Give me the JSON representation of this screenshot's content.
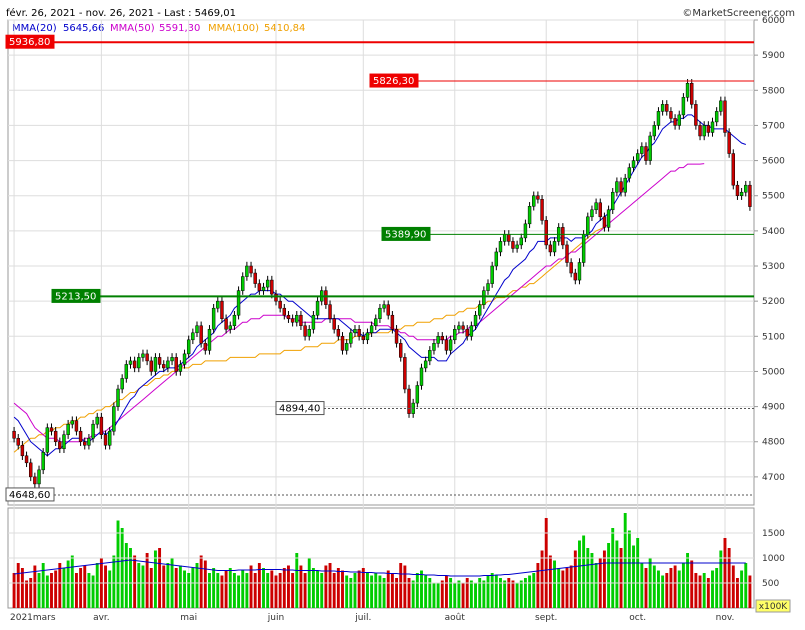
{
  "header": {
    "range": "févr. 26, 2021 - nov. 26, 2021 - Last : 5469,01",
    "copyright": "©MarketScreener.com"
  },
  "legend": [
    {
      "label": "MMA(20)",
      "value": "5645,66",
      "color": "#0000cc"
    },
    {
      "label": "MMA(50)",
      "value": "5591,30",
      "color": "#cc00cc"
    },
    {
      "label": "MMA(100)",
      "value": "5410,84",
      "color": "#f0a000"
    }
  ],
  "colors": {
    "up": "#00cc00",
    "down": "#cc0000",
    "grid": "#dddddd"
  },
  "chart_data": {
    "type": "candlestick",
    "price_axis": {
      "min": 4620,
      "max": 6000,
      "ticks": [
        4700,
        4800,
        4900,
        5000,
        5100,
        5200,
        5300,
        5400,
        5500,
        5600,
        5700,
        5800,
        5900,
        6000
      ]
    },
    "price_tick_labels": [
      "4700",
      "4800",
      "4900",
      "5000",
      "5100",
      "5200",
      "5300",
      "5400",
      "5500",
      "5600",
      "5700",
      "5800",
      "5900",
      "6000"
    ],
    "x_labels": [
      "2021mars",
      "avr.",
      "mai",
      "juin",
      "juil.",
      "août",
      "sept.",
      "oct.",
      "nov."
    ],
    "levels": [
      {
        "label": "5936,80",
        "value": 5936.8,
        "color": "#ee0000",
        "bg": "#ee0000",
        "style": "thick"
      },
      {
        "label": "5826,30",
        "value": 5826.3,
        "color": "#ee0000",
        "bg": "#ee0000",
        "style": "thin"
      },
      {
        "label": "5389,90",
        "value": 5389.9,
        "color": "#008000",
        "bg": "#008000",
        "style": "thin"
      },
      {
        "label": "5213,50",
        "value": 5213.5,
        "color": "#008000",
        "bg": "#008000",
        "style": "thick"
      },
      {
        "label": "4894,40",
        "value": 4894.4,
        "color": "#555555",
        "bg": "#ffffff",
        "style": "dashed"
      },
      {
        "label": "4648,60",
        "value": 4648.6,
        "color": "#555555",
        "bg": "#ffffff",
        "style": "dashed"
      }
    ],
    "close": [
      4810,
      4790,
      4760,
      4740,
      4700,
      4680,
      4720,
      4770,
      4840,
      4830,
      4800,
      4780,
      4820,
      4850,
      4860,
      4830,
      4800,
      4790,
      4810,
      4850,
      4870,
      4820,
      4790,
      4830,
      4900,
      4950,
      4980,
      5020,
      5030,
      5010,
      5040,
      5050,
      5030,
      5000,
      5040,
      5020,
      5010,
      5030,
      5040,
      5000,
      5020,
      5050,
      5090,
      5110,
      5130,
      5080,
      5060,
      5120,
      5180,
      5200,
      5150,
      5120,
      5130,
      5160,
      5230,
      5270,
      5300,
      5280,
      5250,
      5230,
      5240,
      5260,
      5220,
      5200,
      5180,
      5160,
      5150,
      5140,
      5160,
      5130,
      5100,
      5120,
      5160,
      5200,
      5230,
      5190,
      5150,
      5120,
      5100,
      5060,
      5080,
      5110,
      5120,
      5100,
      5090,
      5110,
      5130,
      5150,
      5180,
      5190,
      5160,
      5120,
      5080,
      5040,
      4950,
      4880,
      4910,
      4960,
      5010,
      5030,
      5060,
      5080,
      5100,
      5090,
      5060,
      5090,
      5120,
      5130,
      5120,
      5100,
      5130,
      5160,
      5190,
      5230,
      5250,
      5300,
      5340,
      5370,
      5390,
      5370,
      5350,
      5360,
      5380,
      5420,
      5470,
      5500,
      5490,
      5430,
      5360,
      5340,
      5370,
      5410,
      5360,
      5310,
      5280,
      5260,
      5310,
      5390,
      5440,
      5460,
      5480,
      5440,
      5410,
      5460,
      5510,
      5540,
      5510,
      5550,
      5580,
      5600,
      5620,
      5640,
      5600,
      5670,
      5700,
      5740,
      5760,
      5740,
      5720,
      5700,
      5730,
      5780,
      5820,
      5760,
      5700,
      5670,
      5700,
      5680,
      5710,
      5740,
      5770,
      5680,
      5620,
      5530,
      5500,
      5510,
      5530,
      5469
    ],
    "ma20": [
      4870,
      4860,
      4840,
      4820,
      4800,
      4790,
      4780,
      4770,
      4760,
      4770,
      4780,
      4780,
      4790,
      4800,
      4810,
      4810,
      4810,
      4800,
      4800,
      4810,
      4820,
      4830,
      4820,
      4830,
      4840,
      4860,
      4880,
      4900,
      4920,
      4930,
      4950,
      4960,
      4970,
      4980,
      4990,
      5000,
      5000,
      5010,
      5010,
      5010,
      5020,
      5030,
      5040,
      5050,
      5070,
      5080,
      5090,
      5100,
      5110,
      5130,
      5140,
      5150,
      5160,
      5180,
      5190,
      5200,
      5210,
      5220,
      5220,
      5230,
      5230,
      5230,
      5230,
      5220,
      5220,
      5210,
      5200,
      5200,
      5190,
      5180,
      5170,
      5160,
      5150,
      5150,
      5150,
      5150,
      5150,
      5150,
      5150,
      5140,
      5130,
      5120,
      5110,
      5110,
      5100,
      5110,
      5110,
      5110,
      5120,
      5120,
      5120,
      5120,
      5110,
      5100,
      5090,
      5070,
      5060,
      5050,
      5040,
      5040,
      5040,
      5040,
      5030,
      5030,
      5030,
      5050,
      5060,
      5070,
      5080,
      5100,
      5110,
      5120,
      5140,
      5160,
      5180,
      5200,
      5220,
      5240,
      5260,
      5270,
      5290,
      5300,
      5310,
      5320,
      5340,
      5350,
      5370,
      5370,
      5370,
      5380,
      5380,
      5380,
      5380,
      5380,
      5370,
      5380,
      5380,
      5380,
      5390,
      5400,
      5420,
      5430,
      5440,
      5450,
      5470,
      5490,
      5510,
      5530,
      5550,
      5570,
      5590,
      5610,
      5620,
      5640,
      5650,
      5670,
      5690,
      5700,
      5710,
      5710,
      5720,
      5720,
      5730,
      5730,
      5720,
      5710,
      5700,
      5700,
      5690,
      5690,
      5690,
      5690,
      5680,
      5670,
      5660,
      5650,
      5645.66
    ],
    "ma50": [
      4910,
      4900,
      4890,
      4880,
      4860,
      4840,
      4830,
      4820,
      4810,
      4810,
      4810,
      4800,
      4800,
      4800,
      4800,
      4800,
      4800,
      4810,
      4810,
      4820,
      4820,
      4830,
      4830,
      4840,
      4850,
      4860,
      4870,
      4880,
      4890,
      4900,
      4910,
      4920,
      4930,
      4940,
      4950,
      4960,
      4970,
      4980,
      4990,
      5000,
      5010,
      5020,
      5030,
      5040,
      5050,
      5060,
      5070,
      5080,
      5090,
      5100,
      5100,
      5110,
      5120,
      5120,
      5130,
      5140,
      5140,
      5150,
      5150,
      5150,
      5160,
      5160,
      5160,
      5160,
      5160,
      5160,
      5150,
      5150,
      5150,
      5140,
      5140,
      5140,
      5140,
      5140,
      5140,
      5150,
      5150,
      5150,
      5150,
      5150,
      5150,
      5150,
      5140,
      5140,
      5140,
      5140,
      5140,
      5130,
      5130,
      5130,
      5130,
      5120,
      5120,
      5110,
      5110,
      5100,
      5100,
      5090,
      5090,
      5090,
      5090,
      5090,
      5090,
      5090,
      5090,
      5100,
      5100,
      5110,
      5110,
      5120,
      5130,
      5130,
      5140,
      5150,
      5160,
      5170,
      5180,
      5190,
      5200,
      5210,
      5220,
      5230,
      5240,
      5250,
      5260,
      5270,
      5280,
      5290,
      5300,
      5300,
      5310,
      5320,
      5320,
      5330,
      5340,
      5340,
      5350,
      5360,
      5370,
      5380,
      5390,
      5400,
      5410,
      5420,
      5430,
      5440,
      5450,
      5460,
      5470,
      5480,
      5490,
      5500,
      5510,
      5520,
      5530,
      5540,
      5550,
      5560,
      5570,
      5570,
      5580,
      5580,
      5590,
      5590,
      5590,
      5590,
      5591.3
    ],
    "ma100": [
      4770,
      4780,
      4790,
      4800,
      4810,
      4810,
      4820,
      4820,
      4830,
      4830,
      4840,
      4840,
      4850,
      4850,
      4860,
      4860,
      4870,
      4870,
      4880,
      4880,
      4890,
      4890,
      4900,
      4900,
      4910,
      4920,
      4920,
      4930,
      4940,
      4940,
      4950,
      4960,
      4960,
      4970,
      4980,
      4980,
      4990,
      4990,
      5000,
      5000,
      5010,
      5010,
      5010,
      5020,
      5020,
      5020,
      5030,
      5030,
      5030,
      5030,
      5030,
      5030,
      5040,
      5040,
      5040,
      5040,
      5040,
      5040,
      5040,
      5050,
      5050,
      5050,
      5050,
      5050,
      5050,
      5060,
      5060,
      5060,
      5060,
      5060,
      5070,
      5070,
      5070,
      5070,
      5080,
      5080,
      5080,
      5080,
      5090,
      5090,
      5090,
      5090,
      5100,
      5100,
      5100,
      5100,
      5110,
      5110,
      5110,
      5110,
      5110,
      5120,
      5120,
      5120,
      5130,
      5130,
      5130,
      5140,
      5140,
      5140,
      5140,
      5150,
      5150,
      5150,
      5160,
      5160,
      5160,
      5170,
      5170,
      5180,
      5180,
      5180,
      5190,
      5190,
      5200,
      5200,
      5210,
      5210,
      5210,
      5220,
      5230,
      5230,
      5240,
      5240,
      5250,
      5250,
      5260,
      5270,
      5280,
      5290,
      5300,
      5310,
      5320,
      5330,
      5340,
      5350,
      5360,
      5370,
      5380,
      5390,
      5400,
      5405,
      5410.84
    ],
    "volume_axis": {
      "min": 0,
      "max": 2000,
      "ticks": [
        500,
        1000,
        1500
      ]
    },
    "volume_tick_labels": [
      "500",
      "1000",
      "1500"
    ],
    "volume_unit": "x100K",
    "volume": [
      700,
      900,
      800,
      550,
      600,
      850,
      700,
      900,
      650,
      700,
      750,
      900,
      800,
      950,
      1050,
      700,
      800,
      850,
      700,
      650,
      900,
      1000,
      850,
      750,
      1050,
      1750,
      1600,
      1300,
      1200,
      1050,
      900,
      850,
      1100,
      800,
      1150,
      1200,
      850,
      900,
      1000,
      800,
      850,
      750,
      700,
      800,
      900,
      1050,
      950,
      700,
      800,
      700,
      650,
      750,
      800,
      700,
      650,
      750,
      700,
      850,
      700,
      900,
      800,
      700,
      750,
      650,
      700,
      800,
      850,
      700,
      1100,
      850,
      700,
      1000,
      800,
      750,
      700,
      850,
      900,
      700,
      800,
      750,
      650,
      600,
      700,
      750,
      800,
      700,
      650,
      700,
      650,
      600,
      750,
      700,
      600,
      900,
      850,
      600,
      550,
      700,
      750,
      650,
      600,
      500,
      500,
      550,
      650,
      600,
      500,
      550,
      500,
      600,
      550,
      500,
      600,
      550,
      650,
      700,
      650,
      600,
      550,
      600,
      550,
      500,
      550,
      600,
      650,
      700,
      900,
      1150,
      1800,
      1050,
      950,
      800,
      750,
      800,
      850,
      1150,
      1350,
      1450,
      1200,
      1100,
      900,
      1000,
      1150,
      1300,
      1600,
      1350,
      1200,
      1900,
      1550,
      1250,
      1400,
      900,
      800,
      1000,
      850,
      750,
      650,
      700,
      800,
      850,
      750,
      900,
      1100,
      950,
      700,
      650,
      700,
      600,
      750,
      800,
      1150,
      1400,
      1200,
      850,
      600,
      750,
      900,
      650
    ],
    "volume_ma": [
      680,
      690,
      700,
      710,
      720,
      730,
      740,
      750,
      760,
      770,
      780,
      790,
      800,
      810,
      820,
      830,
      840,
      850,
      860,
      870,
      880,
      890,
      900,
      910,
      920,
      930,
      940,
      950,
      960,
      950,
      940,
      930,
      920,
      910,
      900,
      890,
      880,
      870,
      860,
      850,
      840,
      830,
      820,
      810,
      800,
      790,
      780,
      770,
      760,
      750,
      750,
      750,
      750,
      750,
      760,
      760,
      760,
      760,
      760,
      770,
      770,
      770,
      770,
      770,
      770,
      760,
      760,
      760,
      750,
      750,
      750,
      750,
      750,
      750,
      740,
      740,
      740,
      740,
      730,
      730,
      730,
      720,
      720,
      720,
      710,
      710,
      710,
      700,
      700,
      700,
      690,
      690,
      690,
      680,
      680,
      680,
      670,
      670,
      670,
      660,
      660,
      660,
      650,
      650,
      650,
      640,
      640,
      640,
      640,
      640,
      640,
      640,
      640,
      650,
      650,
      650,
      660,
      660,
      670,
      670,
      680,
      690,
      700,
      710,
      720,
      730,
      740,
      750,
      760,
      770,
      780,
      790,
      800,
      810,
      820,
      830,
      840,
      850,
      860,
      870,
      880,
      890,
      900,
      900,
      900,
      900,
      900,
      900,
      900,
      900,
      900,
      900,
      900,
      900,
      900,
      900,
      900,
      900,
      900,
      900,
      900,
      900,
      900,
      900,
      900,
      900,
      900,
      900,
      900,
      900,
      900,
      900,
      900,
      900,
      900,
      900,
      900
    ]
  }
}
